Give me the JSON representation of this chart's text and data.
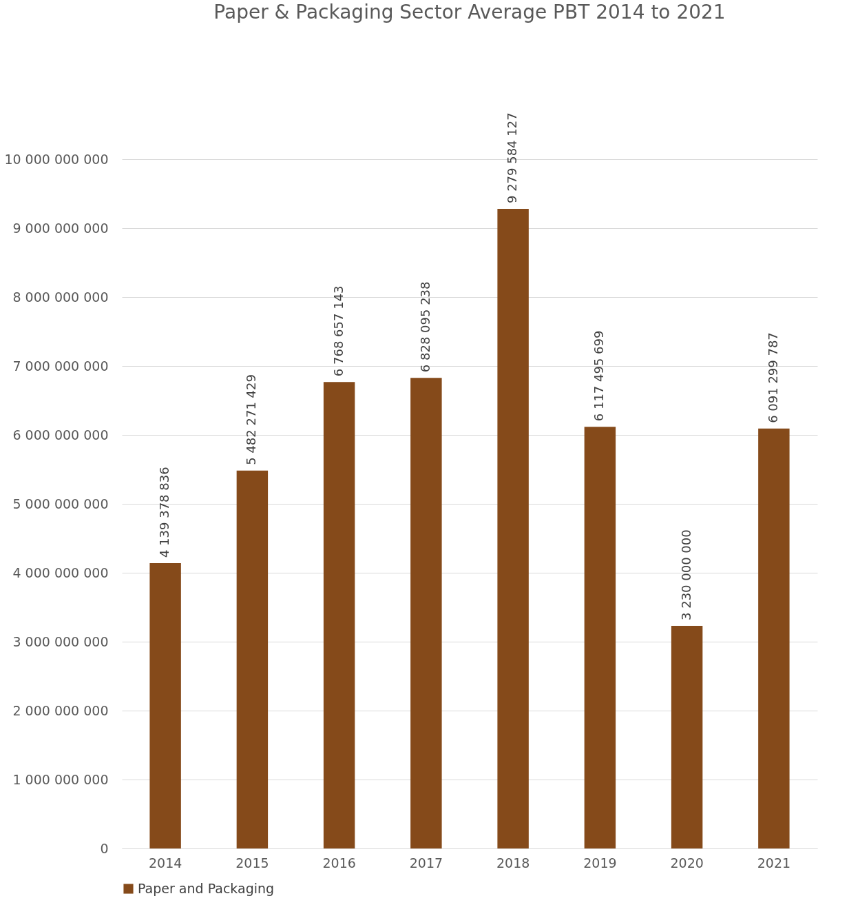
{
  "chart_data": {
    "type": "bar",
    "title": "Paper & Packaging Sector Average PBT 2014 to 2021",
    "categories": [
      "2014",
      "2015",
      "2016",
      "2017",
      "2018",
      "2019",
      "2020",
      "2021"
    ],
    "series": [
      {
        "name": "Paper and Packaging",
        "color": "#854a1a",
        "values": [
          4139378836,
          5482271429,
          6768657143,
          6828095238,
          9279584127,
          6117495699,
          3230000000,
          6091299787
        ]
      }
    ],
    "ylim": [
      0,
      10000000000
    ],
    "yticks": [
      0,
      1000000000,
      2000000000,
      3000000000,
      4000000000,
      5000000000,
      6000000000,
      7000000000,
      8000000000,
      9000000000,
      10000000000
    ],
    "grid": "y",
    "legend": "bottom",
    "data_labels": true
  }
}
